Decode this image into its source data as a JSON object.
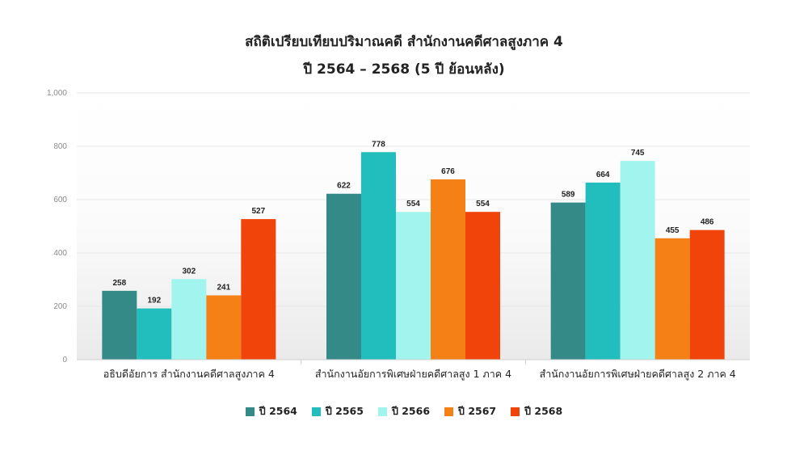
{
  "chart_data": {
    "type": "bar",
    "title": "สถิติเปรียบเทียบปริมาณคดี สำนักงานคดีศาลสูงภาค 4",
    "subtitle": "ปี 2564 – 2568  (5 ปี ย้อนหลัง)",
    "categories": [
      "อธิบดีอัยการ สำนักงานคดีศาลสูงภาค 4",
      "สำนักงานอัยการพิเศษฝ่ายคดีศาลสูง 1 ภาค 4",
      "สำนักงานอัยการพิเศษฝ่ายคดีศาลสูง 2 ภาค 4"
    ],
    "series": [
      {
        "name": "ปี 2564",
        "color": "#348a87",
        "values": [
          258,
          622,
          589
        ]
      },
      {
        "name": "ปี 2565",
        "color": "#22bdbd",
        "values": [
          192,
          778,
          664
        ]
      },
      {
        "name": "ปี 2566",
        "color": "#a2f5ee",
        "values": [
          302,
          554,
          745
        ]
      },
      {
        "name": "ปี 2567",
        "color": "#f58015",
        "values": [
          241,
          676,
          455
        ]
      },
      {
        "name": "ปี 2568",
        "color": "#f0440a",
        "values": [
          527,
          554,
          486
        ]
      }
    ],
    "ylim": [
      0,
      1000
    ],
    "yticks": [
      "0",
      "200",
      "400",
      "600",
      "800",
      "1,000"
    ],
    "grid": true,
    "legend_position": "bottom"
  }
}
